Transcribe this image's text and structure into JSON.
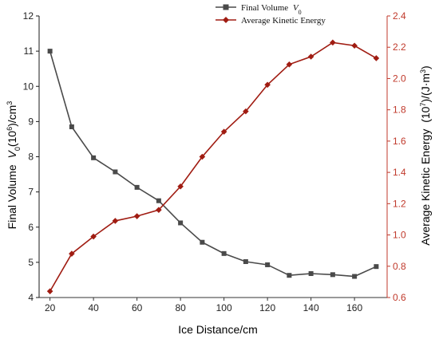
{
  "chart_data": {
    "type": "line",
    "x": [
      20,
      30,
      40,
      50,
      60,
      70,
      80,
      90,
      100,
      110,
      120,
      130,
      140,
      150,
      160,
      170
    ],
    "xlabel": "Ice Distance/cm",
    "xlim": [
      15,
      175
    ],
    "xticks": [
      "20",
      "40",
      "60",
      "80",
      "100",
      "120",
      "140",
      "160"
    ],
    "xtick_values": [
      20,
      40,
      60,
      80,
      100,
      120,
      140,
      160
    ],
    "y_left": {
      "label_main": "Final Volume",
      "label_var": "V",
      "label_sub": "0",
      "label_paren": "(10",
      "label_exp": "6",
      "label_unit": ")/cm",
      "label_unit_exp": "3",
      "lim": [
        4,
        12
      ],
      "ticks": [
        "4",
        "5",
        "6",
        "7",
        "8",
        "9",
        "10",
        "11",
        "12"
      ],
      "tick_values": [
        4,
        5,
        6,
        7,
        8,
        9,
        10,
        11,
        12
      ],
      "color": "#1a1a1a"
    },
    "y_right": {
      "label_main": "Average Kinetic Energy",
      "label_paren": "(10",
      "label_exp": "7",
      "label_unit": ")/(J·m",
      "label_unit_exp": "3",
      "label_close": ")",
      "lim": [
        0.6,
        2.4
      ],
      "ticks": [
        "0.6",
        "0.8",
        "1.0",
        "1.2",
        "1.4",
        "1.6",
        "1.8",
        "2.0",
        "2.2",
        "2.4"
      ],
      "tick_values": [
        0.6,
        0.8,
        1.0,
        1.2,
        1.4,
        1.6,
        1.8,
        2.0,
        2.2,
        2.4
      ],
      "color": "#c0392b"
    },
    "series": [
      {
        "name": "Final Volume",
        "name_var": "V",
        "name_sub": "0",
        "axis": "left",
        "marker": "square",
        "color": "#4a4a4a",
        "values": [
          11.0,
          8.85,
          7.97,
          7.57,
          7.13,
          6.75,
          6.12,
          5.57,
          5.25,
          5.02,
          4.93,
          4.63,
          4.68,
          4.65,
          4.6,
          4.88
        ]
      },
      {
        "name": "Average Kinetic Energy",
        "axis": "right",
        "marker": "diamond",
        "color": "#a01c12",
        "values": [
          0.64,
          0.88,
          0.99,
          1.09,
          1.12,
          1.16,
          1.31,
          1.5,
          1.66,
          1.79,
          1.96,
          2.09,
          2.14,
          2.23,
          2.21,
          2.13
        ]
      }
    ],
    "legend_position": "top",
    "grid": false
  }
}
